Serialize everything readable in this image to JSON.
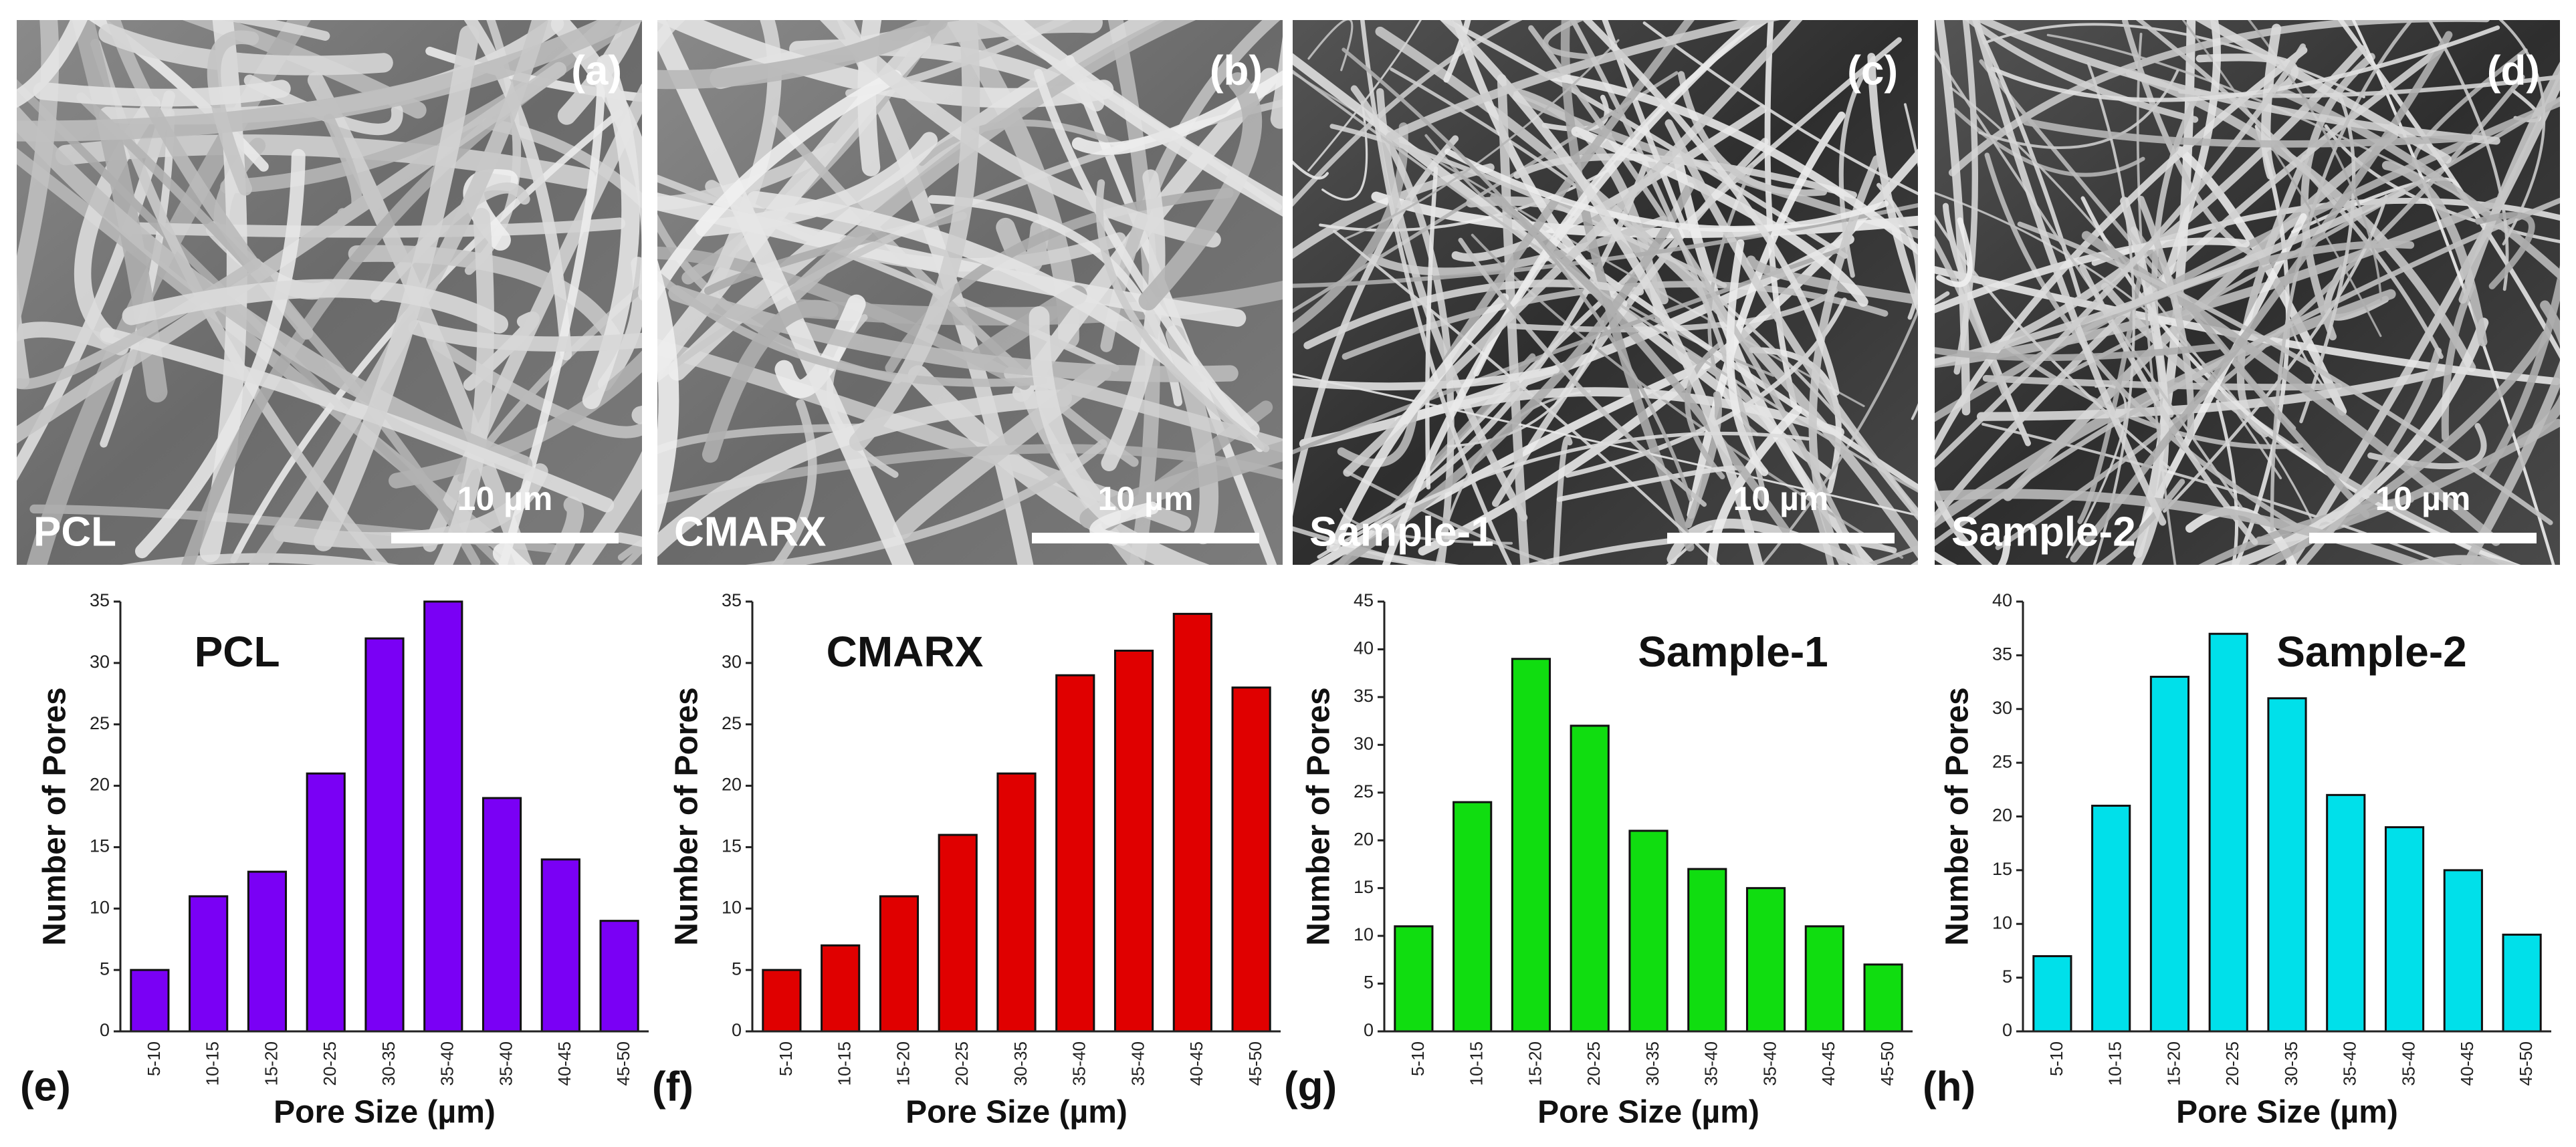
{
  "images": [
    {
      "letter": "(a)",
      "label": "PCL",
      "scale_bar": "10 µm"
    },
    {
      "letter": "(b)",
      "label": "CMARX",
      "scale_bar": "10 µm"
    },
    {
      "letter": "(c)",
      "label": "Sample-1",
      "scale_bar": "10 µm"
    },
    {
      "letter": "(d)",
      "label": "Sample-2",
      "scale_bar": "10 µm"
    }
  ],
  "chart_data": [
    {
      "type": "bar",
      "letter": "(e)",
      "title": "PCL",
      "x_label": "Pore Size (µm)",
      "y_label": "Number of Pores",
      "categories": [
        "5-10",
        "10-15",
        "15-20",
        "20-25",
        "30-35",
        "35-40",
        "35-40",
        "40-45",
        "45-50"
      ],
      "values": [
        5,
        11,
        13,
        21,
        32,
        35,
        19,
        14,
        9
      ],
      "color": "#7a00f5",
      "ylim": [
        0,
        35
      ],
      "yticks": [
        0,
        5,
        10,
        15,
        20,
        25,
        30,
        35
      ]
    },
    {
      "type": "bar",
      "letter": "(f)",
      "title": "CMARX",
      "x_label": "Pore Size (µm)",
      "y_label": "Number of Pores",
      "categories": [
        "5-10",
        "10-15",
        "15-20",
        "20-25",
        "30-35",
        "35-40",
        "35-40",
        "40-45",
        "45-50"
      ],
      "values": [
        5,
        7,
        11,
        16,
        21,
        29,
        31,
        34,
        28
      ],
      "color": "#e00000",
      "ylim": [
        0,
        35
      ],
      "yticks": [
        0,
        5,
        10,
        15,
        20,
        25,
        30,
        35
      ]
    },
    {
      "type": "bar",
      "letter": "(g)",
      "title": "Sample-1",
      "x_label": "Pore Size (µm)",
      "y_label": "Number of Pores",
      "categories": [
        "5-10",
        "10-15",
        "15-20",
        "20-25",
        "30-35",
        "35-40",
        "35-40",
        "40-45",
        "45-50"
      ],
      "values": [
        11,
        24,
        39,
        32,
        21,
        17,
        15,
        11,
        7
      ],
      "color": "#10dd10",
      "ylim": [
        0,
        45
      ],
      "yticks": [
        0,
        5,
        10,
        15,
        20,
        25,
        30,
        35,
        40,
        45
      ]
    },
    {
      "type": "bar",
      "letter": "(h)",
      "title": "Sample-2",
      "x_label": "Pore Size (µm)",
      "y_label": "Number of Pores",
      "categories": [
        "5-10",
        "10-15",
        "15-20",
        "20-25",
        "30-35",
        "35-40",
        "35-40",
        "40-45",
        "45-50"
      ],
      "values": [
        7,
        21,
        33,
        37,
        31,
        22,
        19,
        15,
        9
      ],
      "color": "#00e0ea",
      "ylim": [
        0,
        40
      ],
      "yticks": [
        0,
        5,
        10,
        15,
        20,
        25,
        30,
        35,
        40
      ]
    }
  ]
}
